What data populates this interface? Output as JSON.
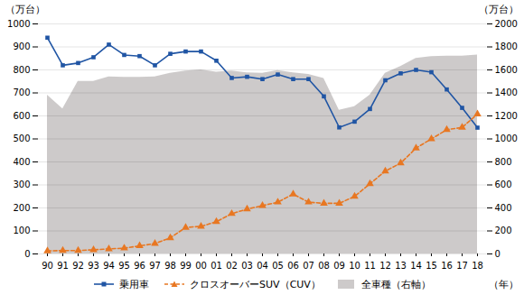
{
  "chart_data": {
    "type": "line",
    "categories": [
      "90",
      "91",
      "92",
      "93",
      "94",
      "95",
      "96",
      "97",
      "98",
      "99",
      "00",
      "01",
      "02",
      "03",
      "04",
      "05",
      "06",
      "07",
      "08",
      "09",
      "10",
      "11",
      "12",
      "13",
      "14",
      "15",
      "16",
      "17",
      "18"
    ],
    "series": [
      {
        "name": "乗用車",
        "type": "line",
        "color": "#2055a4",
        "marker": "square",
        "line_style": "solid",
        "values": [
          940,
          820,
          830,
          855,
          910,
          865,
          860,
          820,
          870,
          880,
          880,
          840,
          765,
          770,
          760,
          780,
          760,
          760,
          685,
          550,
          575,
          630,
          755,
          785,
          800,
          790,
          715,
          635,
          549
        ]
      },
      {
        "name": "クロスオーバーSUV（CUV）",
        "type": "line",
        "color": "#e87722",
        "marker": "triangle",
        "line_style": "dashed",
        "values": [
          13,
          15,
          15,
          18,
          22,
          25,
          35,
          45,
          70,
          115,
          120,
          140,
          175,
          195,
          210,
          225,
          260,
          225,
          220,
          220,
          250,
          305,
          360,
          395,
          460,
          500,
          540,
          550,
          608
        ]
      },
      {
        "name": "全車種（右軸）",
        "type": "area",
        "axis": "y2",
        "color": "#c8c4c4",
        "values": [
          1380,
          1260,
          1500,
          1500,
          1540,
          1535,
          1535,
          1540,
          1570,
          1590,
          1600,
          1580,
          1590,
          1575,
          1570,
          1595,
          1575,
          1560,
          1525,
          1250,
          1280,
          1380,
          1570,
          1630,
          1700,
          1715,
          1720,
          1720,
          1730
        ]
      }
    ],
    "xlabel": "（年）",
    "ylabel": "（万台）",
    "y2label": "（万台）",
    "ylim": [
      0,
      1000
    ],
    "yticks": [
      0,
      100,
      200,
      300,
      400,
      500,
      600,
      700,
      800,
      900,
      1000
    ],
    "y2lim": [
      0,
      2000
    ],
    "y2ticks": [
      0,
      200,
      400,
      600,
      800,
      1000,
      1200,
      1400,
      1600,
      1800,
      2000
    ],
    "grid": true,
    "legend": "bottom"
  }
}
